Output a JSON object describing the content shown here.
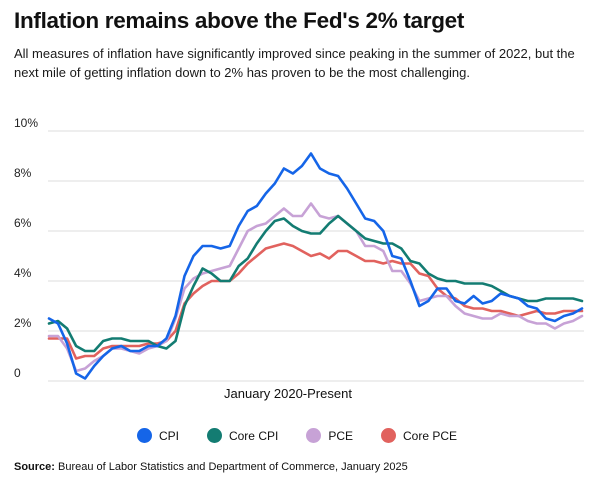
{
  "header": {
    "title": "Inflation remains above the Fed's 2% target",
    "subtitle": "All measures of inflation have significantly improved since peaking in the summer of 2022, but the next mile of getting inflation down to 2% has proven to be the most challenging."
  },
  "source": {
    "label": "Source:",
    "text": "Bureau of Labor Statistics and Department of Commerce, January 2025"
  },
  "chart_data": {
    "type": "line",
    "xlabel": "January 2020-Present",
    "ylabel": "",
    "ylim": [
      0,
      10
    ],
    "yticks": [
      0,
      2,
      4,
      6,
      8,
      10
    ],
    "ytick_labels": [
      "0",
      "2%",
      "4%",
      "6%",
      "8%",
      "10%"
    ],
    "grid": "horizontal",
    "legend_position": "bottom",
    "series": [
      {
        "name": "CPI",
        "color": "#1565e8",
        "values": [
          2.5,
          2.3,
          1.5,
          0.3,
          0.1,
          0.6,
          1.0,
          1.3,
          1.4,
          1.2,
          1.2,
          1.4,
          1.4,
          1.7,
          2.6,
          4.2,
          5.0,
          5.4,
          5.4,
          5.3,
          5.4,
          6.2,
          6.8,
          7.0,
          7.5,
          7.9,
          8.5,
          8.3,
          8.6,
          9.1,
          8.5,
          8.3,
          8.2,
          7.7,
          7.1,
          6.5,
          6.4,
          6.0,
          5.0,
          4.9,
          4.0,
          3.0,
          3.2,
          3.7,
          3.7,
          3.2,
          3.1,
          3.4,
          3.1,
          3.2,
          3.5,
          3.4,
          3.3,
          3.0,
          2.9,
          2.5,
          2.4,
          2.6,
          2.7,
          2.9
        ]
      },
      {
        "name": "Core CPI",
        "color": "#137c72",
        "values": [
          2.3,
          2.4,
          2.1,
          1.4,
          1.2,
          1.2,
          1.6,
          1.7,
          1.7,
          1.6,
          1.6,
          1.6,
          1.4,
          1.3,
          1.6,
          3.0,
          3.8,
          4.5,
          4.3,
          4.0,
          4.0,
          4.6,
          4.9,
          5.5,
          6.0,
          6.4,
          6.5,
          6.2,
          6.0,
          5.9,
          5.9,
          6.3,
          6.6,
          6.3,
          6.0,
          5.7,
          5.6,
          5.5,
          5.5,
          5.3,
          4.8,
          4.7,
          4.3,
          4.1,
          4.0,
          4.0,
          3.9,
          3.9,
          3.9,
          3.8,
          3.6,
          3.4,
          3.3,
          3.2,
          3.2,
          3.3,
          3.3,
          3.3,
          3.3,
          3.2
        ]
      },
      {
        "name": "PCE",
        "color": "#c7a2d6",
        "values": [
          1.8,
          1.8,
          1.3,
          0.4,
          0.5,
          0.8,
          1.0,
          1.3,
          1.3,
          1.2,
          1.1,
          1.3,
          1.4,
          1.6,
          2.5,
          3.7,
          4.1,
          4.3,
          4.4,
          4.5,
          4.6,
          5.3,
          6.0,
          6.2,
          6.3,
          6.6,
          6.9,
          6.6,
          6.6,
          7.1,
          6.6,
          6.5,
          6.6,
          6.3,
          6.0,
          5.4,
          5.4,
          5.2,
          4.4,
          4.4,
          3.9,
          3.2,
          3.3,
          3.4,
          3.4,
          3.0,
          2.7,
          2.6,
          2.5,
          2.5,
          2.7,
          2.6,
          2.6,
          2.4,
          2.3,
          2.3,
          2.1,
          2.3,
          2.4,
          2.6
        ]
      },
      {
        "name": "Core PCE",
        "color": "#e1625e",
        "values": [
          1.7,
          1.7,
          1.7,
          0.9,
          1.0,
          1.0,
          1.3,
          1.4,
          1.4,
          1.4,
          1.4,
          1.5,
          1.5,
          1.6,
          2.0,
          3.1,
          3.5,
          3.8,
          4.0,
          4.0,
          4.0,
          4.3,
          4.7,
          5.0,
          5.3,
          5.4,
          5.5,
          5.4,
          5.2,
          5.0,
          5.1,
          4.9,
          5.2,
          5.2,
          5.0,
          4.8,
          4.8,
          4.7,
          4.8,
          4.7,
          4.7,
          4.3,
          4.2,
          3.7,
          3.4,
          3.3,
          3.0,
          2.9,
          2.9,
          2.8,
          2.8,
          2.7,
          2.6,
          2.7,
          2.8,
          2.7,
          2.7,
          2.8,
          2.8,
          2.8
        ]
      }
    ]
  }
}
